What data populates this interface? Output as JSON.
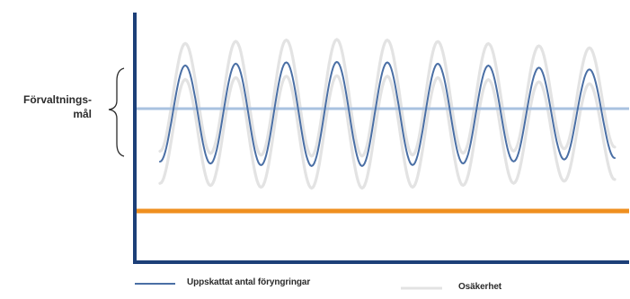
{
  "diagram": {
    "target_label": {
      "line1": "Förvaltnings-",
      "line2": "mål"
    },
    "legend": {
      "estimated_label": "Uppskattat antal föryngringar",
      "uncertainty_label": "Osäkerhet"
    },
    "colors": {
      "axis": "#1c3f78",
      "estimate_line": "#4a6fa5",
      "uncertainty": "#e3e3e3",
      "target_line": "#a9c2e0",
      "limit_line": "#ef8f1f",
      "text": "#2b2b2b"
    },
    "curve": {
      "cycles": 9,
      "peak_trend": "slowly varying amplitude"
    }
  }
}
